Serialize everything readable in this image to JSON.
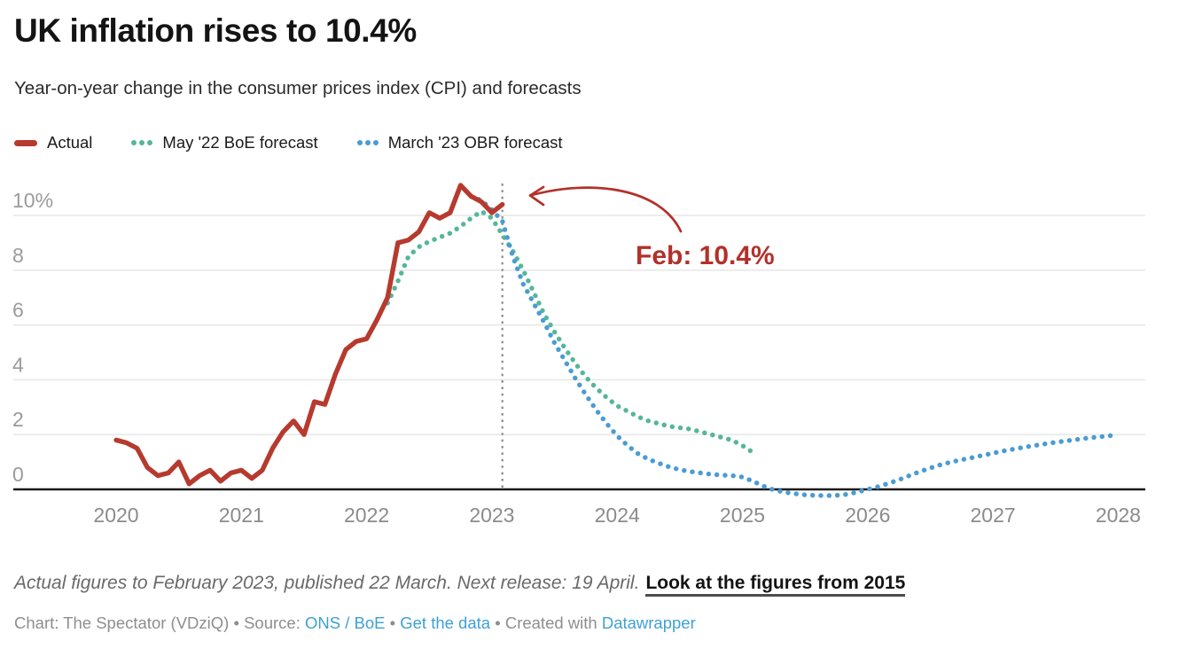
{
  "header": {
    "title": "UK inflation rises to 10.4%",
    "subtitle": "Year-on-year change in the consumer prices index (CPI) and forecasts"
  },
  "legend": [
    {
      "label": "Actual",
      "marker": "line",
      "color": "#b63a2e"
    },
    {
      "label": "May '22 BoE forecast",
      "marker": "dots",
      "color": "#55b69a"
    },
    {
      "label": "March '23 OBR forecast",
      "marker": "dots",
      "color": "#4a9cd3"
    }
  ],
  "chart_data": {
    "type": "line",
    "title": "UK inflation rises to 10.4%",
    "subtitle": "Year-on-year change in the consumer prices index (CPI) and forecasts",
    "unit": "%",
    "grid": true,
    "legend_position": "top",
    "ylim": [
      -0.5,
      11.6
    ],
    "y_ticks": [
      {
        "value": 0,
        "label": "0"
      },
      {
        "value": 2,
        "label": "2"
      },
      {
        "value": 4,
        "label": "4"
      },
      {
        "value": 6,
        "label": "6"
      },
      {
        "value": 8,
        "label": "8"
      },
      {
        "value": 10,
        "label": "10%"
      }
    ],
    "x_ticks": [
      {
        "at": "2020-01",
        "label": "2020"
      },
      {
        "at": "2021-01",
        "label": "2021"
      },
      {
        "at": "2022-01",
        "label": "2022"
      },
      {
        "at": "2023-01",
        "label": "2023"
      },
      {
        "at": "2024-01",
        "label": "2024"
      },
      {
        "at": "2025-01",
        "label": "2025"
      },
      {
        "at": "2026-01",
        "label": "2026"
      },
      {
        "at": "2027-01",
        "label": "2027"
      },
      {
        "at": "2028-01",
        "label": "2028"
      }
    ],
    "series": [
      {
        "name": "Actual",
        "color": "#b63a2e",
        "style": "solid",
        "start": "2020-01",
        "values": [
          1.8,
          1.7,
          1.5,
          0.8,
          0.5,
          0.6,
          1.0,
          0.2,
          0.5,
          0.7,
          0.3,
          0.6,
          0.7,
          0.4,
          0.7,
          1.5,
          2.1,
          2.5,
          2.0,
          3.2,
          3.1,
          4.2,
          5.1,
          5.4,
          5.5,
          6.2,
          7.0,
          9.0,
          9.1,
          9.4,
          10.1,
          9.9,
          10.1,
          11.1,
          10.7,
          10.5,
          10.1,
          10.4
        ]
      },
      {
        "name": "May '22 BoE forecast",
        "color": "#55b69a",
        "style": "dotted",
        "start": "2022-03",
        "values": [
          6.8,
          7.6,
          8.5,
          8.85,
          9.05,
          9.2,
          9.35,
          9.6,
          9.9,
          10.15,
          9.9,
          9.3,
          8.7,
          8.0,
          7.2,
          6.4,
          5.75,
          5.15,
          4.6,
          4.1,
          3.7,
          3.35,
          3.05,
          2.85,
          2.65,
          2.5,
          2.4,
          2.3,
          2.25,
          2.2,
          2.1,
          2.0,
          1.9,
          1.8,
          1.6,
          1.35
        ]
      },
      {
        "name": "March '23 OBR forecast",
        "color": "#4a9cd3",
        "style": "dotted",
        "start": "2022-11",
        "values": [
          10.7,
          10.55,
          10.2,
          9.8,
          8.5,
          7.5,
          6.8,
          6.1,
          5.35,
          4.7,
          4.05,
          3.45,
          2.9,
          2.4,
          1.95,
          1.6,
          1.3,
          1.1,
          0.95,
          0.82,
          0.72,
          0.65,
          0.6,
          0.55,
          0.52,
          0.5,
          0.45,
          0.3,
          0.12,
          -0.02,
          -0.1,
          -0.16,
          -0.2,
          -0.22,
          -0.23,
          -0.22,
          -0.18,
          -0.1,
          0.0,
          0.1,
          0.22,
          0.35,
          0.5,
          0.65,
          0.78,
          0.9,
          1.0,
          1.08,
          1.16,
          1.24,
          1.32,
          1.4,
          1.47,
          1.54,
          1.6,
          1.66,
          1.72,
          1.77,
          1.82,
          1.87,
          1.91,
          1.95,
          1.98
        ]
      }
    ],
    "annotation": {
      "text": "Feb: 10.4%",
      "series": "Actual",
      "point": "2023-02",
      "value": 10.4,
      "vline_at": "2023-02",
      "color": "#b2312a"
    }
  },
  "footnote": {
    "text": "Actual figures to February 2023, published 22 March. Next release: 19 April.",
    "link_label": "Look at the figures from 2015"
  },
  "byline": {
    "chart_credit": "Chart: The Spectator (VDziQ)",
    "sep": "•",
    "source_label": "Source:",
    "source_link": "ONS / BoE",
    "get_data_link": "Get the data",
    "created_with": "Created with",
    "tool_link": "Datawrapper"
  }
}
